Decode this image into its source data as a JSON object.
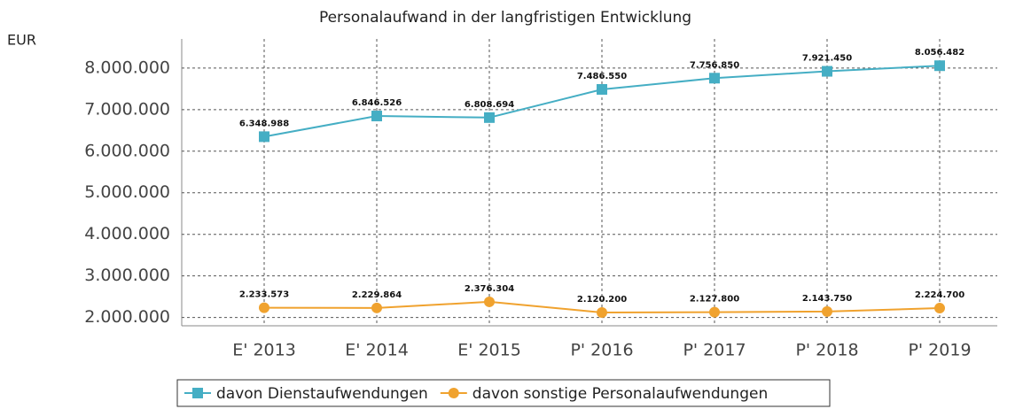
{
  "chart_data": {
    "type": "line",
    "title": "Personalaufwand in der langfristigen Entwicklung",
    "y_label": "EUR",
    "categories": [
      "E' 2013",
      "E' 2014",
      "E' 2015",
      "P' 2016",
      "P' 2017",
      "P' 2018",
      "P' 2019"
    ],
    "series": [
      {
        "name": "davon Dienstaufwendungen",
        "color": "#45aec4",
        "marker": "square",
        "values": [
          6348988,
          6846526,
          6808694,
          7486550,
          7756850,
          7921450,
          8056482
        ],
        "value_labels": [
          "6.348.988",
          "6.846.526",
          "6.808.694",
          "7.486.550",
          "7.756.850",
          "7.921.450",
          "8.056.482"
        ]
      },
      {
        "name": "davon sonstige Personalaufwendungen",
        "color": "#f0a22e",
        "marker": "circle",
        "values": [
          2233573,
          2229864,
          2376304,
          2120200,
          2127800,
          2143750,
          2224700
        ],
        "value_labels": [
          "2.233.573",
          "2.229.864",
          "2.376.304",
          "2.120.200",
          "2.127.800",
          "2.143.750",
          "2.224.700"
        ]
      }
    ],
    "ylim": [
      1800000,
      8700000
    ],
    "yticks": [
      {
        "value": 2000000,
        "label": "2.000.000"
      },
      {
        "value": 3000000,
        "label": "3.000.000"
      },
      {
        "value": 4000000,
        "label": "4.000.000"
      },
      {
        "value": 5000000,
        "label": "5.000.000"
      },
      {
        "value": 6000000,
        "label": "6.000.000"
      },
      {
        "value": 7000000,
        "label": "7.000.000"
      },
      {
        "value": 8000000,
        "label": "8.000.000"
      }
    ],
    "grid": true,
    "legend": "bottom"
  }
}
